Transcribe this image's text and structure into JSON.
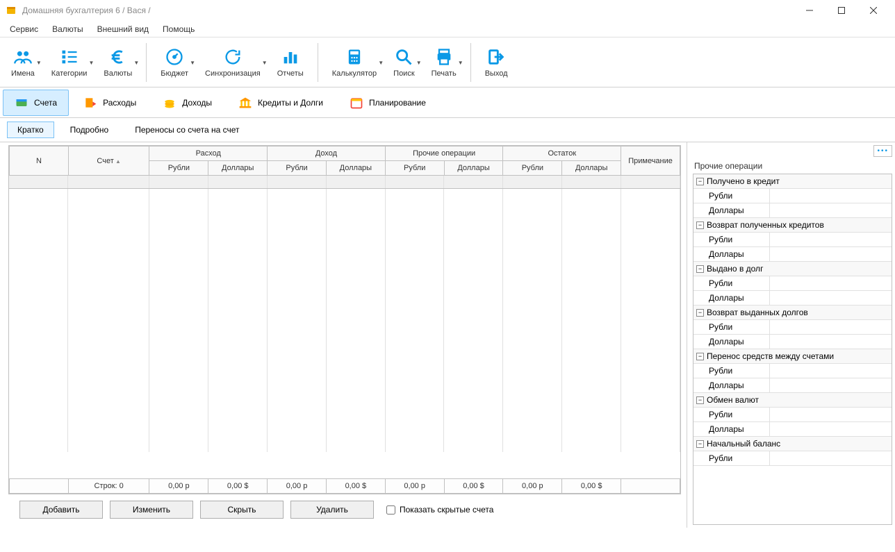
{
  "window": {
    "title": "Домашняя бухгалтерия 6  / Вася /"
  },
  "menu": {
    "items": [
      "Сервис",
      "Валюты",
      "Внешний вид",
      "Помощь"
    ]
  },
  "toolbar": {
    "groups": [
      [
        {
          "id": "names",
          "label": "Имена",
          "dd": true
        },
        {
          "id": "categories",
          "label": "Категории",
          "dd": true
        },
        {
          "id": "currencies",
          "label": "Валюты",
          "dd": true
        }
      ],
      [
        {
          "id": "budget",
          "label": "Бюджет",
          "dd": true
        },
        {
          "id": "sync",
          "label": "Синхронизация",
          "dd": true
        },
        {
          "id": "reports",
          "label": "Отчеты",
          "dd": false
        }
      ],
      [
        {
          "id": "calc",
          "label": "Калькулятор",
          "dd": true
        },
        {
          "id": "search",
          "label": "Поиск",
          "dd": true
        },
        {
          "id": "print",
          "label": "Печать",
          "dd": true
        }
      ],
      [
        {
          "id": "exit",
          "label": "Выход",
          "dd": false
        }
      ]
    ]
  },
  "navtabs": [
    {
      "id": "accounts",
      "label": "Счета",
      "active": true
    },
    {
      "id": "expenses",
      "label": "Расходы",
      "active": false
    },
    {
      "id": "income",
      "label": "Доходы",
      "active": false
    },
    {
      "id": "credits",
      "label": "Кредиты и Долги",
      "active": false
    },
    {
      "id": "planning",
      "label": "Планирование",
      "active": false
    }
  ],
  "subtabs": [
    {
      "label": "Кратко",
      "active": true
    },
    {
      "label": "Подробно",
      "active": false
    },
    {
      "label": "Переносы со счета на счет",
      "active": false
    }
  ],
  "table": {
    "headers": {
      "n": "N",
      "account": "Счет",
      "groups": [
        "Расход",
        "Доход",
        "Прочие операции",
        "Остаток"
      ],
      "sub": [
        "Рубли",
        "Доллары"
      ],
      "note": "Примечание"
    },
    "footer": {
      "rows_label": "Строк: 0",
      "values": [
        "0,00 р",
        "0,00 $",
        "0,00 р",
        "0,00 $",
        "0,00 р",
        "0,00 $",
        "0,00 р",
        "0,00 $"
      ]
    }
  },
  "buttons": {
    "add": "Добавить",
    "edit": "Изменить",
    "hide": "Скрыть",
    "delete": "Удалить",
    "show_hidden": "Показать скрытые счета"
  },
  "sidepanel": {
    "title": "Прочие операции",
    "groups": [
      {
        "label": "Получено в кредит",
        "rows": [
          "Рубли",
          "Доллары"
        ]
      },
      {
        "label": "Возврат полученных кредитов",
        "rows": [
          "Рубли",
          "Доллары"
        ]
      },
      {
        "label": "Выдано в долг",
        "rows": [
          "Рубли",
          "Доллары"
        ]
      },
      {
        "label": "Возврат выданных долгов",
        "rows": [
          "Рубли",
          "Доллары"
        ]
      },
      {
        "label": "Перенос средств между счетами",
        "rows": [
          "Рубли",
          "Доллары"
        ]
      },
      {
        "label": "Обмен валют",
        "rows": [
          "Рубли",
          "Доллары"
        ]
      },
      {
        "label": "Начальный баланс",
        "rows": [
          "Рубли"
        ]
      }
    ]
  },
  "colors": {
    "accent": "#0b99e6",
    "active_tab_bg": "#d6eeff",
    "active_tab_border": "#7ac1f5",
    "footer_bg": "#fffde6"
  }
}
